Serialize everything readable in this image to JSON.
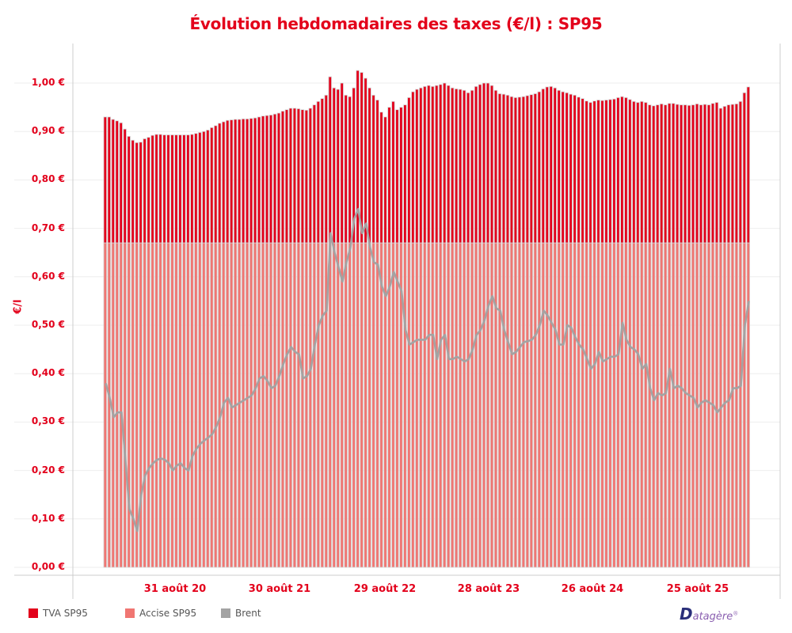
{
  "chart_data": {
    "type": "bar",
    "stacked": true,
    "title": "Évolution hebdomadaires des taxes (€/l) : SP95",
    "ylabel": "€/l",
    "xlabel": "",
    "ylim": [
      0,
      1.0
    ],
    "y_ticks": [
      "0,00 €",
      "0,10 €",
      "0,20 €",
      "0,30 €",
      "0,40 €",
      "0,50 €",
      "0,60 €",
      "0,70 €",
      "0,80 €",
      "0,90 €",
      "1,00 €"
    ],
    "y_tick_values": [
      0,
      0.1,
      0.2,
      0.3,
      0.4,
      0.5,
      0.6,
      0.7,
      0.8,
      0.9,
      1.0
    ],
    "x_ticks": [
      "31 août 20",
      "30 août 21",
      "29 août 22",
      "28 août 23",
      "26 août 24",
      "25 août 25"
    ],
    "grid": "horizontal",
    "legend_position": "bottom-left",
    "series": [
      {
        "name": "Accise SP95",
        "kind": "bar",
        "color": "#f07672",
        "constant_value": 0.67
      },
      {
        "name": "TVA SP95",
        "kind": "bar",
        "color": "#e3001b",
        "values": [
          0.26,
          0.26,
          0.255,
          0.252,
          0.248,
          0.235,
          0.22,
          0.212,
          0.207,
          0.208,
          0.215,
          0.218,
          0.222,
          0.224,
          0.224,
          0.223,
          0.223,
          0.223,
          0.223,
          0.223,
          0.223,
          0.223,
          0.224,
          0.226,
          0.228,
          0.23,
          0.233,
          0.238,
          0.242,
          0.247,
          0.25,
          0.253,
          0.254,
          0.255,
          0.255,
          0.256,
          0.256,
          0.257,
          0.258,
          0.26,
          0.262,
          0.263,
          0.264,
          0.266,
          0.268,
          0.272,
          0.275,
          0.278,
          0.278,
          0.277,
          0.275,
          0.274,
          0.278,
          0.285,
          0.292,
          0.298,
          0.305,
          0.343,
          0.32,
          0.317,
          0.33,
          0.305,
          0.302,
          0.32,
          0.356,
          0.352,
          0.34,
          0.32,
          0.305,
          0.295,
          0.27,
          0.26,
          0.28,
          0.292,
          0.275,
          0.28,
          0.285,
          0.3,
          0.312,
          0.317,
          0.32,
          0.323,
          0.325,
          0.323,
          0.325,
          0.327,
          0.33,
          0.325,
          0.32,
          0.318,
          0.317,
          0.315,
          0.31,
          0.315,
          0.323,
          0.327,
          0.33,
          0.33,
          0.325,
          0.315,
          0.308,
          0.307,
          0.305,
          0.302,
          0.3,
          0.301,
          0.302,
          0.304,
          0.306,
          0.308,
          0.312,
          0.318,
          0.322,
          0.323,
          0.32,
          0.315,
          0.312,
          0.31,
          0.307,
          0.305,
          0.301,
          0.298,
          0.293,
          0.29,
          0.293,
          0.295,
          0.294,
          0.295,
          0.296,
          0.297,
          0.3,
          0.302,
          0.3,
          0.296,
          0.292,
          0.29,
          0.292,
          0.29,
          0.285,
          0.283,
          0.285,
          0.287,
          0.285,
          0.288,
          0.288,
          0.286,
          0.285,
          0.285,
          0.284,
          0.285,
          0.287,
          0.285,
          0.286,
          0.285,
          0.288,
          0.29,
          0.278,
          0.282,
          0.285,
          0.286,
          0.287,
          0.292,
          0.31,
          0.322
        ]
      },
      {
        "name": "Brent",
        "kind": "line",
        "color": "#a3a3a3",
        "values": [
          0.38,
          0.35,
          0.31,
          0.32,
          0.32,
          0.22,
          0.12,
          0.1,
          0.075,
          0.15,
          0.19,
          0.205,
          0.215,
          0.222,
          0.225,
          0.222,
          0.215,
          0.2,
          0.21,
          0.215,
          0.205,
          0.2,
          0.23,
          0.245,
          0.255,
          0.262,
          0.268,
          0.275,
          0.29,
          0.31,
          0.34,
          0.35,
          0.33,
          0.335,
          0.34,
          0.345,
          0.35,
          0.355,
          0.37,
          0.39,
          0.395,
          0.385,
          0.37,
          0.375,
          0.395,
          0.42,
          0.44,
          0.455,
          0.445,
          0.44,
          0.39,
          0.395,
          0.41,
          0.46,
          0.5,
          0.52,
          0.53,
          0.69,
          0.65,
          0.62,
          0.59,
          0.63,
          0.66,
          0.72,
          0.74,
          0.69,
          0.71,
          0.66,
          0.63,
          0.625,
          0.58,
          0.56,
          0.58,
          0.61,
          0.59,
          0.57,
          0.49,
          0.46,
          0.465,
          0.47,
          0.47,
          0.47,
          0.48,
          0.48,
          0.43,
          0.47,
          0.48,
          0.43,
          0.43,
          0.435,
          0.43,
          0.425,
          0.43,
          0.45,
          0.48,
          0.49,
          0.51,
          0.54,
          0.56,
          0.535,
          0.53,
          0.49,
          0.465,
          0.44,
          0.445,
          0.455,
          0.465,
          0.467,
          0.47,
          0.48,
          0.5,
          0.53,
          0.52,
          0.505,
          0.49,
          0.46,
          0.46,
          0.5,
          0.495,
          0.475,
          0.46,
          0.45,
          0.43,
          0.41,
          0.42,
          0.445,
          0.425,
          0.43,
          0.435,
          0.435,
          0.44,
          0.505,
          0.47,
          0.455,
          0.45,
          0.44,
          0.41,
          0.42,
          0.37,
          0.345,
          0.36,
          0.355,
          0.36,
          0.41,
          0.37,
          0.375,
          0.37,
          0.36,
          0.355,
          0.35,
          0.33,
          0.34,
          0.345,
          0.34,
          0.335,
          0.32,
          0.33,
          0.34,
          0.345,
          0.37,
          0.37,
          0.375,
          0.5,
          0.55
        ]
      }
    ]
  },
  "legend": [
    {
      "label": "TVA SP95",
      "color": "#e3001b"
    },
    {
      "label": "Accise SP95",
      "color": "#f07672"
    },
    {
      "label": "Brent",
      "color": "#a3a3a3"
    }
  ],
  "logo": {
    "text_initial": "D",
    "text_rest": "atagère",
    "mark": "®"
  }
}
